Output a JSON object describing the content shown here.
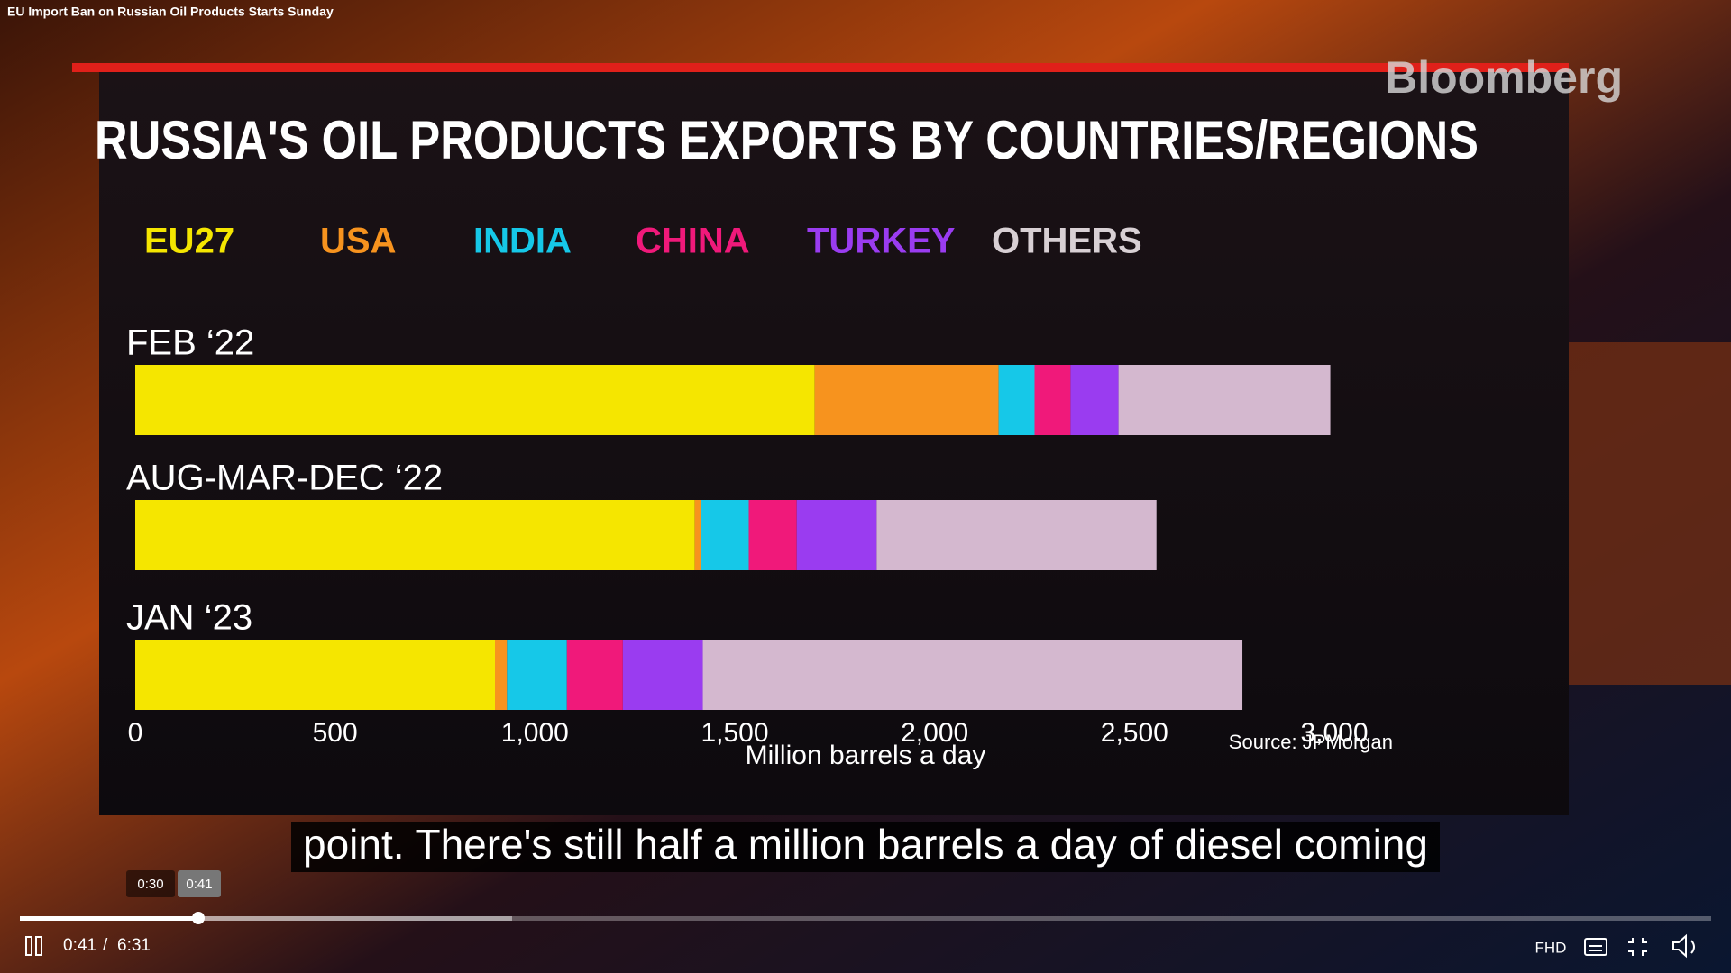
{
  "video_title": "EU Import Ban on Russian Oil Products Starts Sunday",
  "watermark": "Bloomberg",
  "chart_data": {
    "type": "bar",
    "stacked": true,
    "orientation": "horizontal",
    "title": "RUSSIA'S OIL PRODUCTS EXPORTS BY COUNTRIES/REGIONS",
    "categories": [
      "FEB ‘22",
      "AUG-MAR-DEC ‘22",
      "JAN ‘23"
    ],
    "series": [
      {
        "name": "EU27",
        "color": "#f5e600",
        "values": [
          1700,
          1400,
          900
        ]
      },
      {
        "name": "USA",
        "color": "#f7931e",
        "values": [
          460,
          15,
          30
        ]
      },
      {
        "name": "INDIA",
        "color": "#16c8e8",
        "values": [
          90,
          120,
          150
        ]
      },
      {
        "name": "CHINA",
        "color": "#f0197a",
        "values": [
          90,
          120,
          140
        ]
      },
      {
        "name": "TURKEY",
        "color": "#9a3cf0",
        "values": [
          120,
          200,
          200
        ]
      },
      {
        "name": "OTHERS",
        "color": "#d4b8cf",
        "values": [
          530,
          700,
          1350
        ]
      }
    ],
    "xlim": [
      0,
      3000
    ],
    "xticks": [
      0,
      500,
      {
        "value": 1000,
        "label": "1,000"
      },
      {
        "value": 1500,
        "label": "1,500"
      },
      {
        "value": 2000,
        "label": "2,000"
      },
      {
        "value": 2500,
        "label": "2,500"
      },
      {
        "value": 3000,
        "label": "3,000"
      }
    ],
    "xlabel": "Million barrels a day",
    "source": "Source: JPMorgan"
  },
  "subtitle": "point. There's still half a million barrels a day of diesel coming",
  "player": {
    "preview_times": [
      "0:30",
      "0:41"
    ],
    "current_time": "0:41",
    "separator": "/",
    "duration": "6:31",
    "quality": "FHD"
  }
}
